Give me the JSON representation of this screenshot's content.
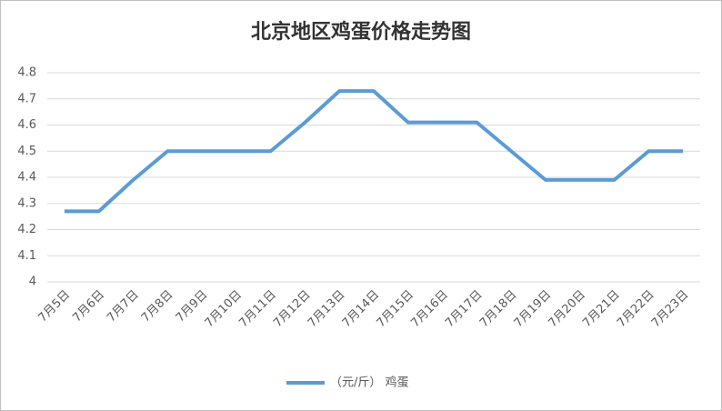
{
  "chart_data": {
    "type": "line",
    "title": "北京地区鸡蛋价格走势图",
    "categories": [
      "7月5日",
      "7月6日",
      "7月7日",
      "7月8日",
      "7月9日",
      "7月10日",
      "7月11日",
      "7月12日",
      "7月13日",
      "7月14日",
      "7月15日",
      "7月16日",
      "7月17日",
      "7月18日",
      "7月19日",
      "7月20日",
      "7月21日",
      "7月22日",
      "7月23日"
    ],
    "series": [
      {
        "name": "（元/斤） 鸡蛋",
        "color": "#5b9bd5",
        "values": [
          4.27,
          4.27,
          4.39,
          4.5,
          4.5,
          4.5,
          4.5,
          4.61,
          4.73,
          4.73,
          4.61,
          4.61,
          4.61,
          4.5,
          4.39,
          4.39,
          4.39,
          4.5,
          4.5
        ]
      }
    ],
    "ylim": [
      4,
      4.8
    ],
    "yticks": [
      4,
      4.1,
      4.2,
      4.3,
      4.4,
      4.5,
      4.6,
      4.7,
      4.8
    ],
    "grid": true,
    "legend": "bottom"
  }
}
